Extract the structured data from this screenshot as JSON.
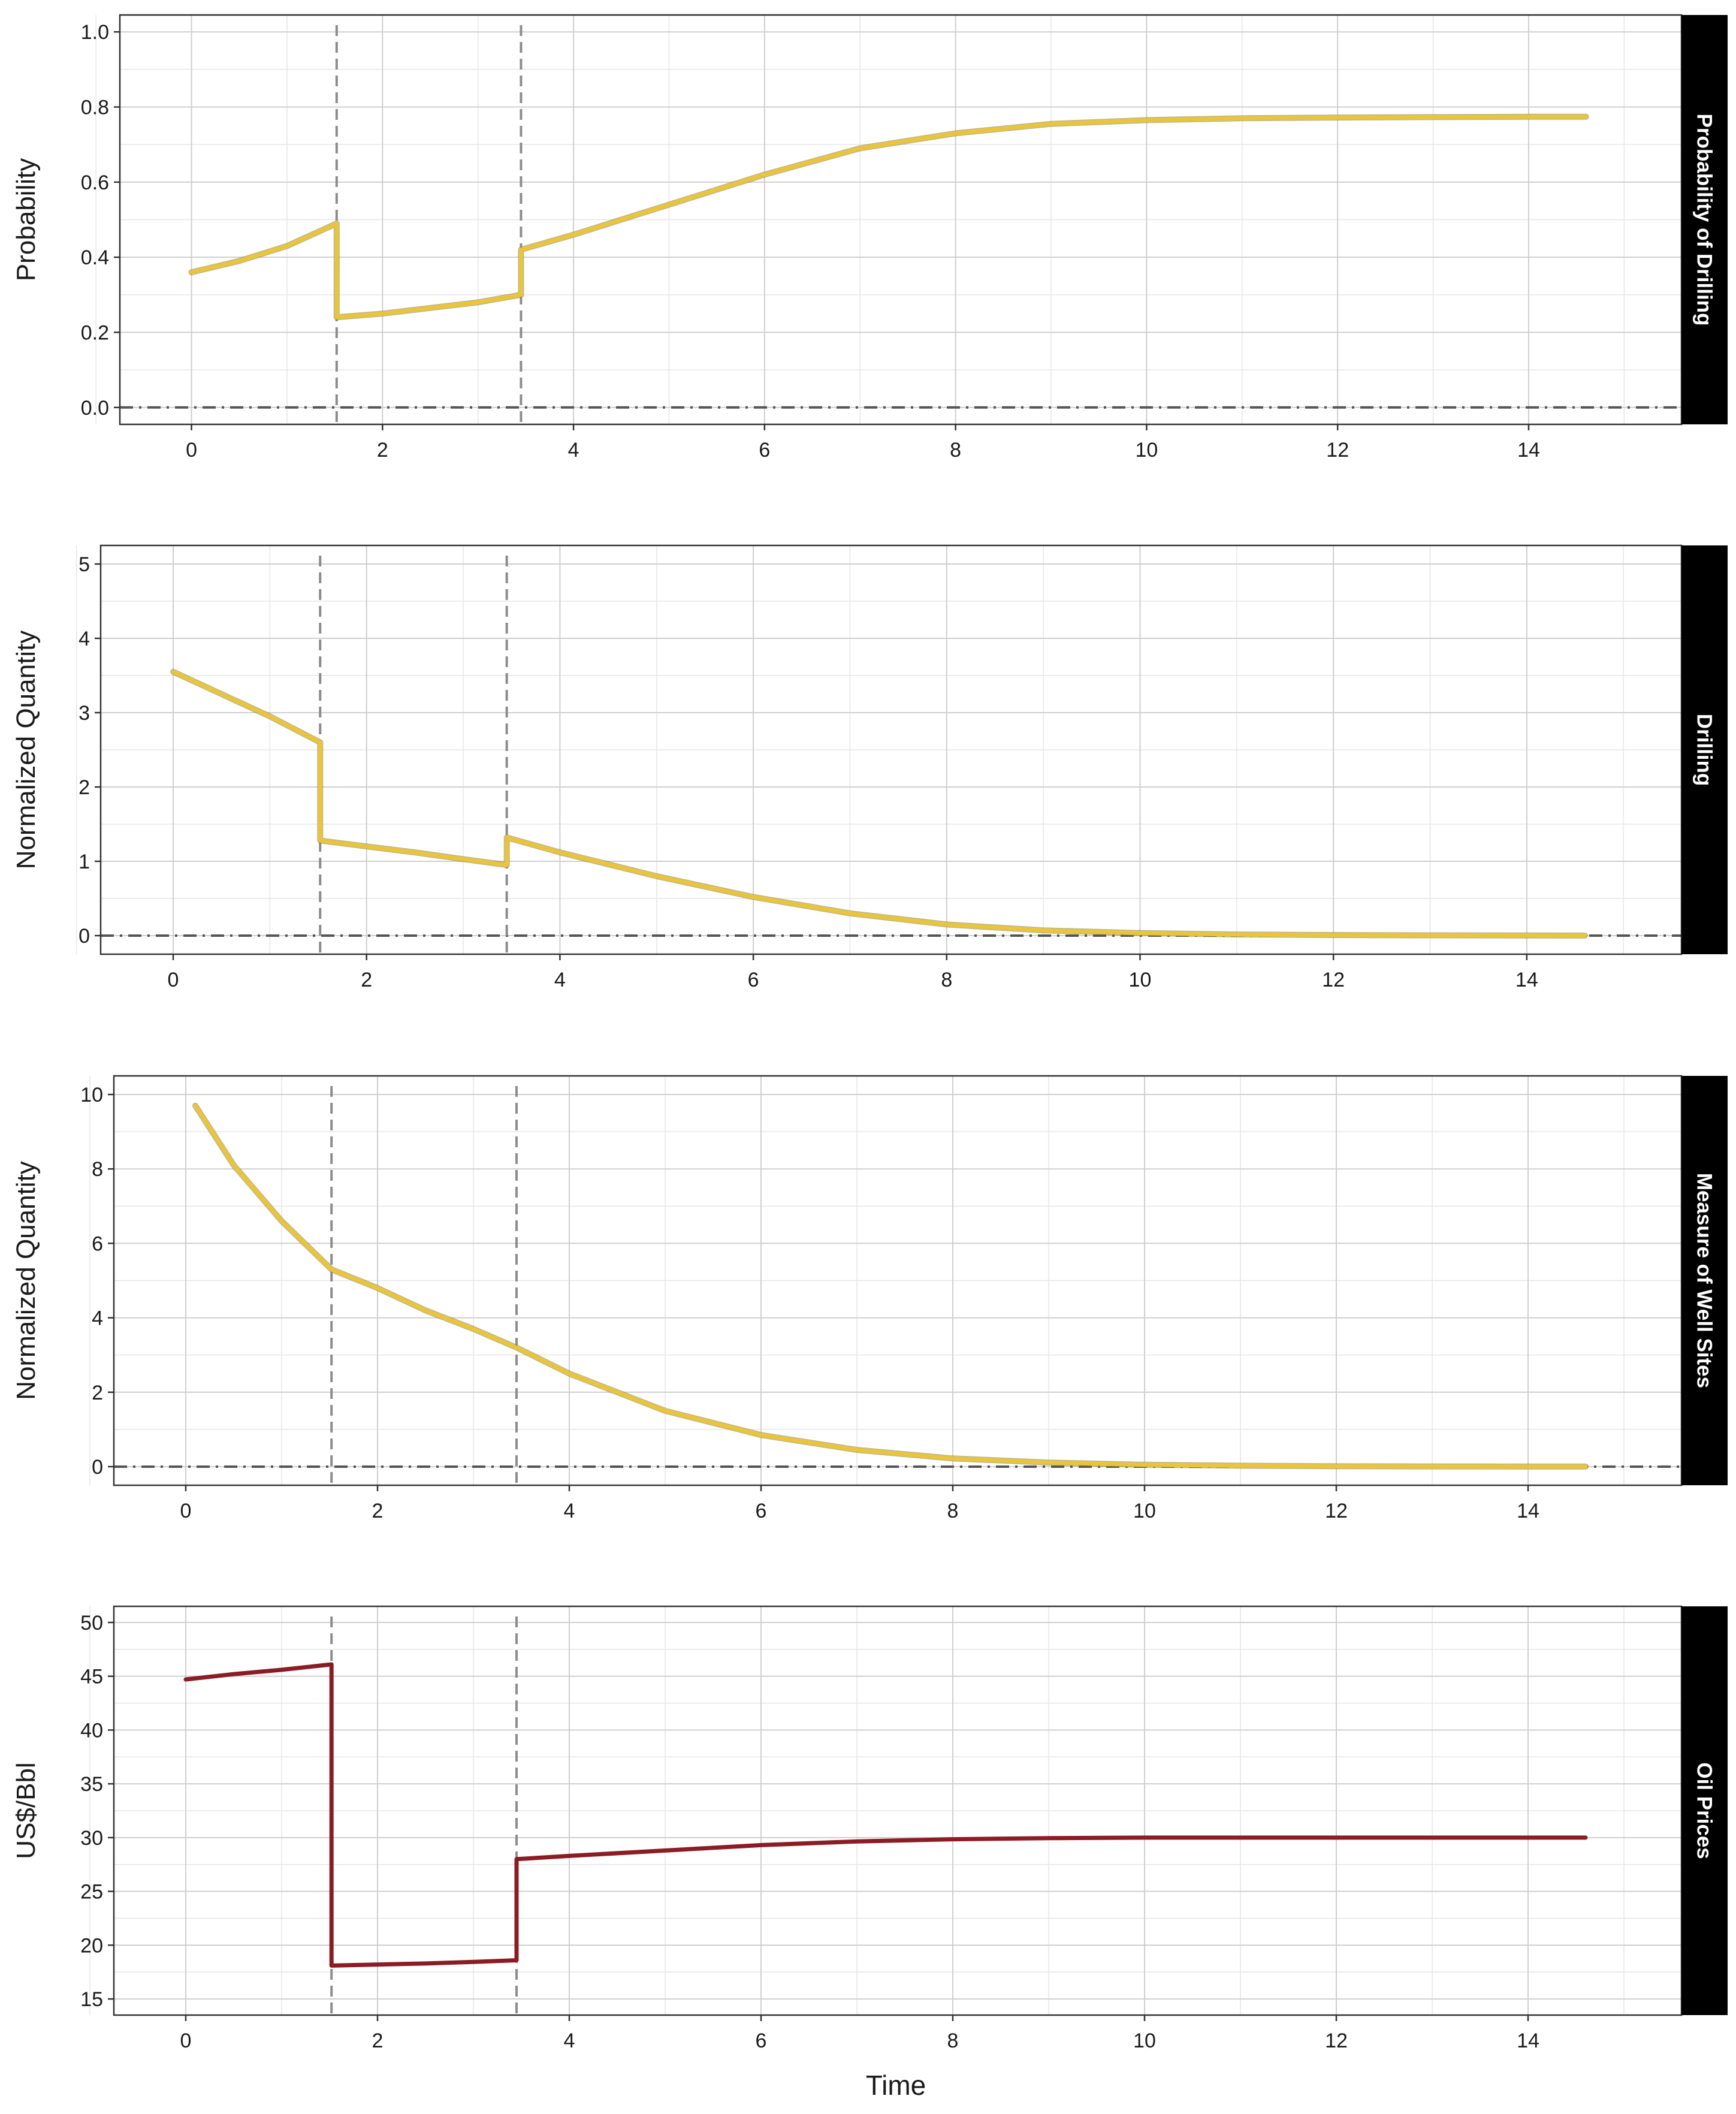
{
  "chart_data": [
    {
      "type": "line",
      "strip_label": "Probability of Drilling",
      "ylabel": "Probability",
      "xlim": [
        -0.75,
        15.6
      ],
      "ylim": [
        -0.045,
        1.045
      ],
      "yticks": [
        0.0,
        0.2,
        0.4,
        0.6,
        0.8,
        1.0
      ],
      "ytick_labels": [
        "0.0",
        "0.2",
        "0.4",
        "0.6",
        "0.8",
        "1.0"
      ],
      "xticks": [
        0,
        2,
        4,
        6,
        8,
        10,
        12,
        14
      ],
      "xtick_labels": [
        "0",
        "2",
        "4",
        "6",
        "8",
        "10",
        "12",
        "14"
      ],
      "vlines": [
        1.52,
        3.45
      ],
      "hline": 0,
      "line_color": "#e8c53a",
      "series": [
        {
          "x": [
            0,
            0.5,
            1.0,
            1.52,
            1.52,
            2,
            2.5,
            3,
            3.45,
            3.45,
            4,
            5,
            6,
            7,
            8,
            9,
            10,
            11,
            12,
            13,
            14,
            14.6
          ],
          "y": [
            0.36,
            0.39,
            0.43,
            0.49,
            0.24,
            0.25,
            0.265,
            0.28,
            0.3,
            0.42,
            0.46,
            0.54,
            0.62,
            0.69,
            0.73,
            0.755,
            0.765,
            0.77,
            0.772,
            0.773,
            0.774,
            0.774
          ]
        }
      ]
    },
    {
      "type": "line",
      "strip_label": "Drilling",
      "ylabel": "Normalized Quantity",
      "xlim": [
        -0.75,
        15.6
      ],
      "ylim": [
        -0.25,
        5.25
      ],
      "yticks": [
        0,
        1,
        2,
        3,
        4,
        5
      ],
      "ytick_labels": [
        "0",
        "1",
        "2",
        "3",
        "4",
        "5"
      ],
      "xticks": [
        0,
        2,
        4,
        6,
        8,
        10,
        12,
        14
      ],
      "xtick_labels": [
        "0",
        "2",
        "4",
        "6",
        "8",
        "10",
        "12",
        "14"
      ],
      "vlines": [
        1.52,
        3.45
      ],
      "hline": 0,
      "line_color": "#e8c53a",
      "series": [
        {
          "x": [
            0,
            0.5,
            1.0,
            1.52,
            1.52,
            2,
            2.5,
            3,
            3.45,
            3.45,
            4,
            5,
            6,
            7,
            8,
            9,
            10,
            11,
            12,
            13,
            14,
            14.6
          ],
          "y": [
            3.55,
            3.25,
            2.95,
            2.6,
            1.28,
            1.2,
            1.12,
            1.03,
            0.95,
            1.32,
            1.12,
            0.8,
            0.52,
            0.3,
            0.15,
            0.07,
            0.035,
            0.015,
            0.008,
            0.004,
            0.002,
            0.001
          ]
        }
      ]
    },
    {
      "type": "line",
      "strip_label": "Measure of Well Sites",
      "ylabel": "Normalized Quantity",
      "xlim": [
        -0.75,
        15.6
      ],
      "ylim": [
        -0.5,
        10.5
      ],
      "yticks": [
        0,
        2,
        4,
        6,
        8,
        10
      ],
      "ytick_labels": [
        "0",
        "2",
        "4",
        "6",
        "8",
        "10"
      ],
      "xticks": [
        0,
        2,
        4,
        6,
        8,
        10,
        12,
        14
      ],
      "xtick_labels": [
        "0",
        "2",
        "4",
        "6",
        "8",
        "10",
        "12",
        "14"
      ],
      "vlines": [
        1.52,
        3.45
      ],
      "hline": 0,
      "line_color": "#e8c53a",
      "series": [
        {
          "x": [
            0.1,
            0.5,
            1.0,
            1.52,
            2,
            2.5,
            3,
            3.45,
            4,
            5,
            6,
            7,
            8,
            9,
            10,
            11,
            12,
            13,
            14,
            14.6
          ],
          "y": [
            9.7,
            8.1,
            6.6,
            5.3,
            4.8,
            4.2,
            3.7,
            3.2,
            2.5,
            1.5,
            0.85,
            0.45,
            0.22,
            0.11,
            0.05,
            0.025,
            0.012,
            0.006,
            0.003,
            0.002
          ]
        }
      ]
    },
    {
      "type": "line",
      "strip_label": "Oil Prices",
      "ylabel": "US$/Bbl",
      "xlabel": "Time",
      "xlim": [
        -0.75,
        15.6
      ],
      "ylim": [
        13.5,
        51.5
      ],
      "yticks": [
        15,
        20,
        25,
        30,
        35,
        40,
        45,
        50
      ],
      "ytick_labels": [
        "15",
        "20",
        "25",
        "30",
        "35",
        "40",
        "45",
        "50"
      ],
      "xticks": [
        0,
        2,
        4,
        6,
        8,
        10,
        12,
        14
      ],
      "xtick_labels": [
        "0",
        "2",
        "4",
        "6",
        "8",
        "10",
        "12",
        "14"
      ],
      "vlines": [
        1.52,
        3.45
      ],
      "hline": null,
      "line_color": "#8b1c24",
      "series": [
        {
          "x": [
            0,
            0.5,
            1.0,
            1.52,
            1.52,
            2,
            2.5,
            3,
            3.45,
            3.45,
            4,
            5,
            6,
            7,
            8,
            9,
            10,
            11,
            12,
            13,
            14,
            14.6
          ],
          "y": [
            44.7,
            45.2,
            45.6,
            46.1,
            18.1,
            18.2,
            18.3,
            18.45,
            18.6,
            28.0,
            28.3,
            28.8,
            29.3,
            29.65,
            29.85,
            29.95,
            30.0,
            30.0,
            30.0,
            30.0,
            30.0,
            30.0
          ]
        }
      ]
    }
  ]
}
